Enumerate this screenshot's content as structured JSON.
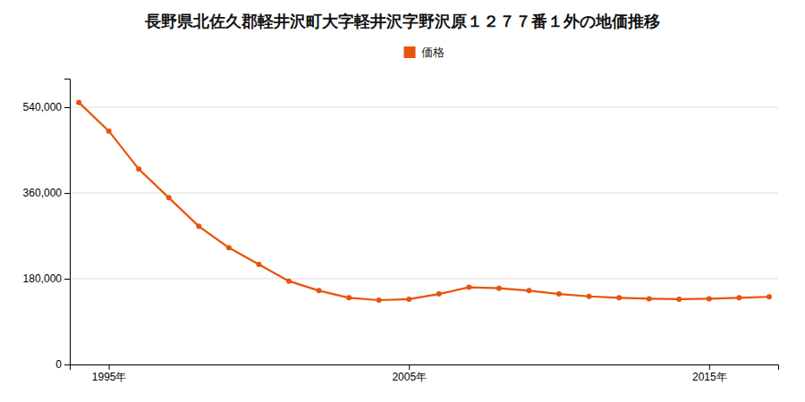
{
  "chart_data": {
    "type": "line",
    "title": "長野県北佐久郡軽井沢町大字軽井沢字野沢原１２７７番１外の地価推移",
    "x": [
      1994,
      1995,
      1996,
      1997,
      1998,
      1999,
      2000,
      2001,
      2002,
      2003,
      2004,
      2005,
      2006,
      2007,
      2008,
      2009,
      2010,
      2011,
      2012,
      2013,
      2014,
      2015,
      2016,
      2017
    ],
    "series": [
      {
        "name": "価格",
        "color": "#e8540a",
        "marker": "circle",
        "values": [
          550000,
          490000,
          410000,
          350000,
          290000,
          245000,
          210000,
          175000,
          155000,
          140000,
          135000,
          137000,
          148000,
          162000,
          160000,
          155000,
          148000,
          143000,
          140000,
          138000,
          137000,
          138000,
          140000,
          142000
        ]
      }
    ],
    "xlim": [
      1993.7,
      2017.3
    ],
    "xticks": [
      {
        "value": 1995,
        "label": "1995年"
      },
      {
        "value": 2005,
        "label": "2005年"
      },
      {
        "value": 2015,
        "label": "2015年"
      }
    ],
    "ylim": [
      0,
      600000
    ],
    "yticks": [
      0,
      {
        "value": 180000,
        "label": "180,000"
      },
      {
        "value": 360000,
        "label": "360,000"
      },
      {
        "value": 540000,
        "label": "540,000"
      }
    ],
    "grid": true,
    "legend": "top"
  }
}
